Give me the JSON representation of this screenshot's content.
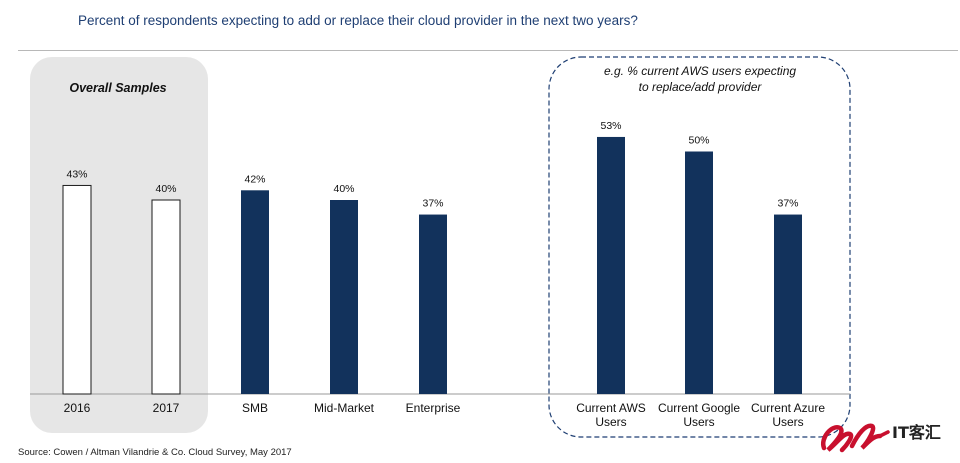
{
  "header": {
    "title": "Percent of respondents expecting to add or replace their cloud provider in the next two years?"
  },
  "footer": {
    "source": "Source: Cowen / Altman Vilandrie & Co. Cloud Survey, May 2017"
  },
  "logo": {
    "text": "IT客汇"
  },
  "chart_data": {
    "type": "bar",
    "title": "Percent of respondents expecting to add or replace their cloud provider in the next two years?",
    "xlabel": "",
    "ylabel": "",
    "ylim": [
      0,
      100
    ],
    "unit": "%",
    "grid": false,
    "categories": [
      "2016",
      "2017",
      "SMB",
      "Mid-Market",
      "Enterprise",
      "Current AWS Users",
      "Current Google Users",
      "Current Azure Users"
    ],
    "values": [
      43,
      40,
      42,
      40,
      37,
      53,
      50,
      37
    ],
    "data_labels": [
      "43%",
      "40%",
      "42%",
      "40%",
      "37%",
      "53%",
      "50%",
      "37%"
    ],
    "bar_styles": [
      "outline",
      "outline",
      "filled",
      "filled",
      "filled",
      "filled",
      "filled",
      "filled"
    ],
    "annotations": {
      "overall_samples": "Overall Samples",
      "aws_note_line1": "e.g. % current AWS users expecting",
      "aws_note_line2": "to replace/add provider"
    },
    "colors": {
      "filled": "#12325c",
      "outline_fill": "#ffffff",
      "outline_stroke": "#1a1a1a",
      "panel": "#e6e6e6",
      "dashed_box": "#1f3f73"
    }
  }
}
